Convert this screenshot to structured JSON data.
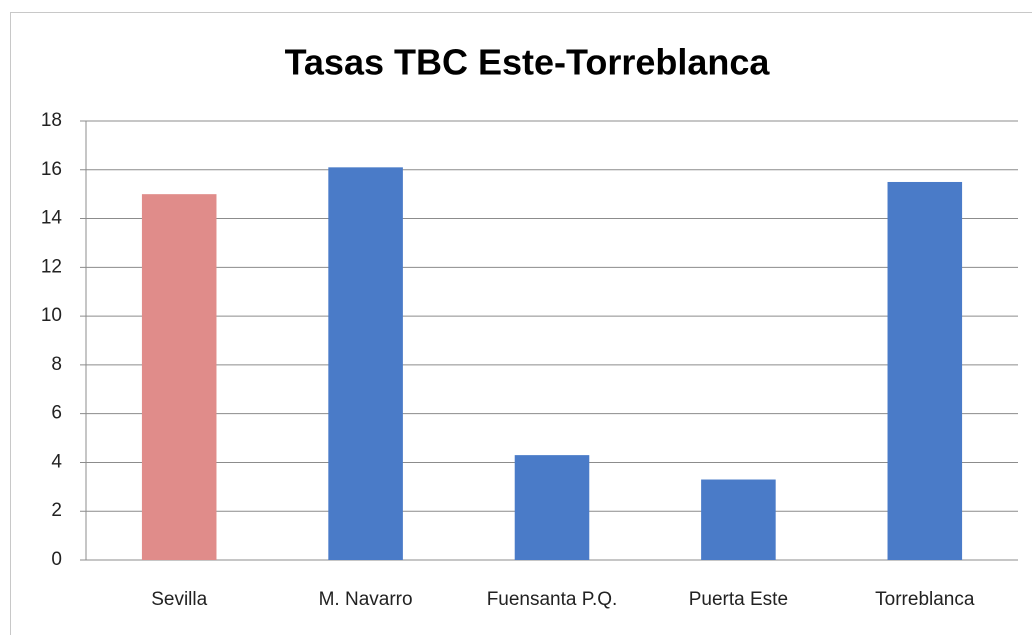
{
  "chart_data": {
    "type": "bar",
    "title": "Tasas TBC Este-Torreblanca",
    "categories": [
      "Sevilla",
      "M. Navarro",
      "Fuensanta P.Q.",
      "Puerta Este",
      "Torreblanca"
    ],
    "values": [
      15.0,
      16.1,
      4.3,
      3.3,
      15.5
    ],
    "colors": [
      "#e08c8a",
      "#4a7bc8",
      "#4a7bc8",
      "#4a7bc8",
      "#4a7bc8"
    ],
    "ylim": [
      0,
      18
    ],
    "yticks": [
      0,
      2,
      4,
      6,
      8,
      10,
      12,
      14,
      16,
      18
    ],
    "grid": true
  }
}
